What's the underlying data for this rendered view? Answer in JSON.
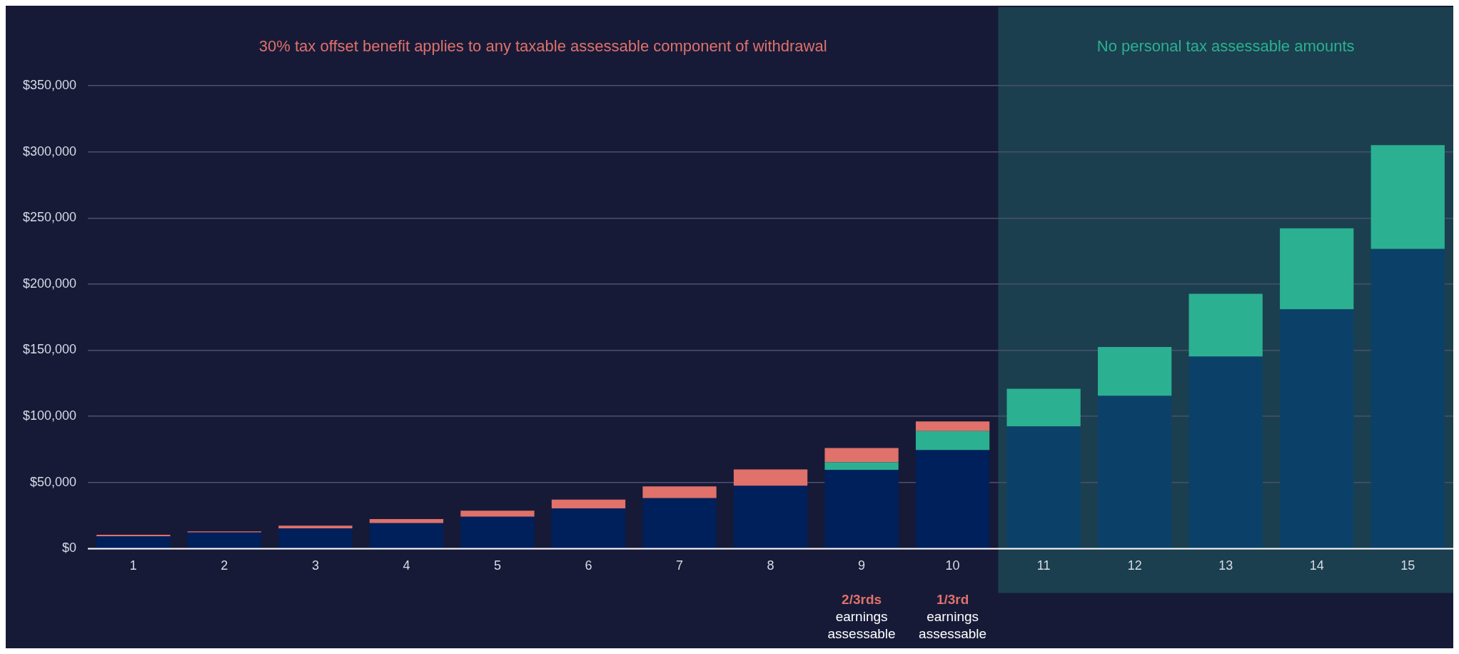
{
  "chart_data": {
    "type": "bar",
    "stacked": true,
    "categories": [
      "1",
      "2",
      "3",
      "4",
      "5",
      "6",
      "7",
      "8",
      "9",
      "10",
      "11",
      "12",
      "13",
      "14",
      "15"
    ],
    "series": [
      {
        "colors": [
          "#00205c",
          "#00205c",
          "#00205c",
          "#00205c",
          "#00205c",
          "#00205c",
          "#00205c",
          "#00205c",
          "#00205c",
          "#00205c",
          "#0b4169",
          "#0b4169",
          "#0b4169",
          "#0b4169",
          "#0b4169"
        ],
        "values": [
          9300,
          12200,
          15300,
          19300,
          24100,
          30400,
          38200,
          47500,
          59500,
          74400,
          92400,
          115400,
          145100,
          180900,
          226500
        ]
      },
      {
        "color": "#2bb092",
        "values": [
          null,
          null,
          null,
          null,
          null,
          null,
          null,
          null,
          5800,
          14500,
          28500,
          37000,
          47600,
          61300,
          78500
        ]
      },
      {
        "color": "#e0716b",
        "values": [
          1200,
          800,
          2000,
          3100,
          4600,
          6600,
          8800,
          12400,
          10700,
          7200,
          null,
          null,
          null,
          null,
          null
        ]
      }
    ],
    "ylim": [
      0,
      350000
    ],
    "yticks": [
      {
        "value": 0,
        "label": "$0"
      },
      {
        "value": 50000,
        "label": "$50,000"
      },
      {
        "value": 100000,
        "label": "$100,000"
      },
      {
        "value": 150000,
        "label": "$150,000"
      },
      {
        "value": 200000,
        "label": "$200,000"
      },
      {
        "value": 250000,
        "label": "$250,000"
      },
      {
        "value": 300000,
        "label": "$300,000"
      },
      {
        "value": 350000,
        "label": "$350,000"
      }
    ],
    "grid": "y",
    "bands": [
      {
        "axis": "x",
        "from": "11",
        "to": "15",
        "label": "No personal tax assessable amounts",
        "color": "#1b3f4e"
      }
    ],
    "annotations": [
      "30% tax offset benefit applies to any taxable assessable component of withdrawal",
      "2/3rds earnings assessable",
      "1/3rd earnings assessable"
    ]
  }
}
